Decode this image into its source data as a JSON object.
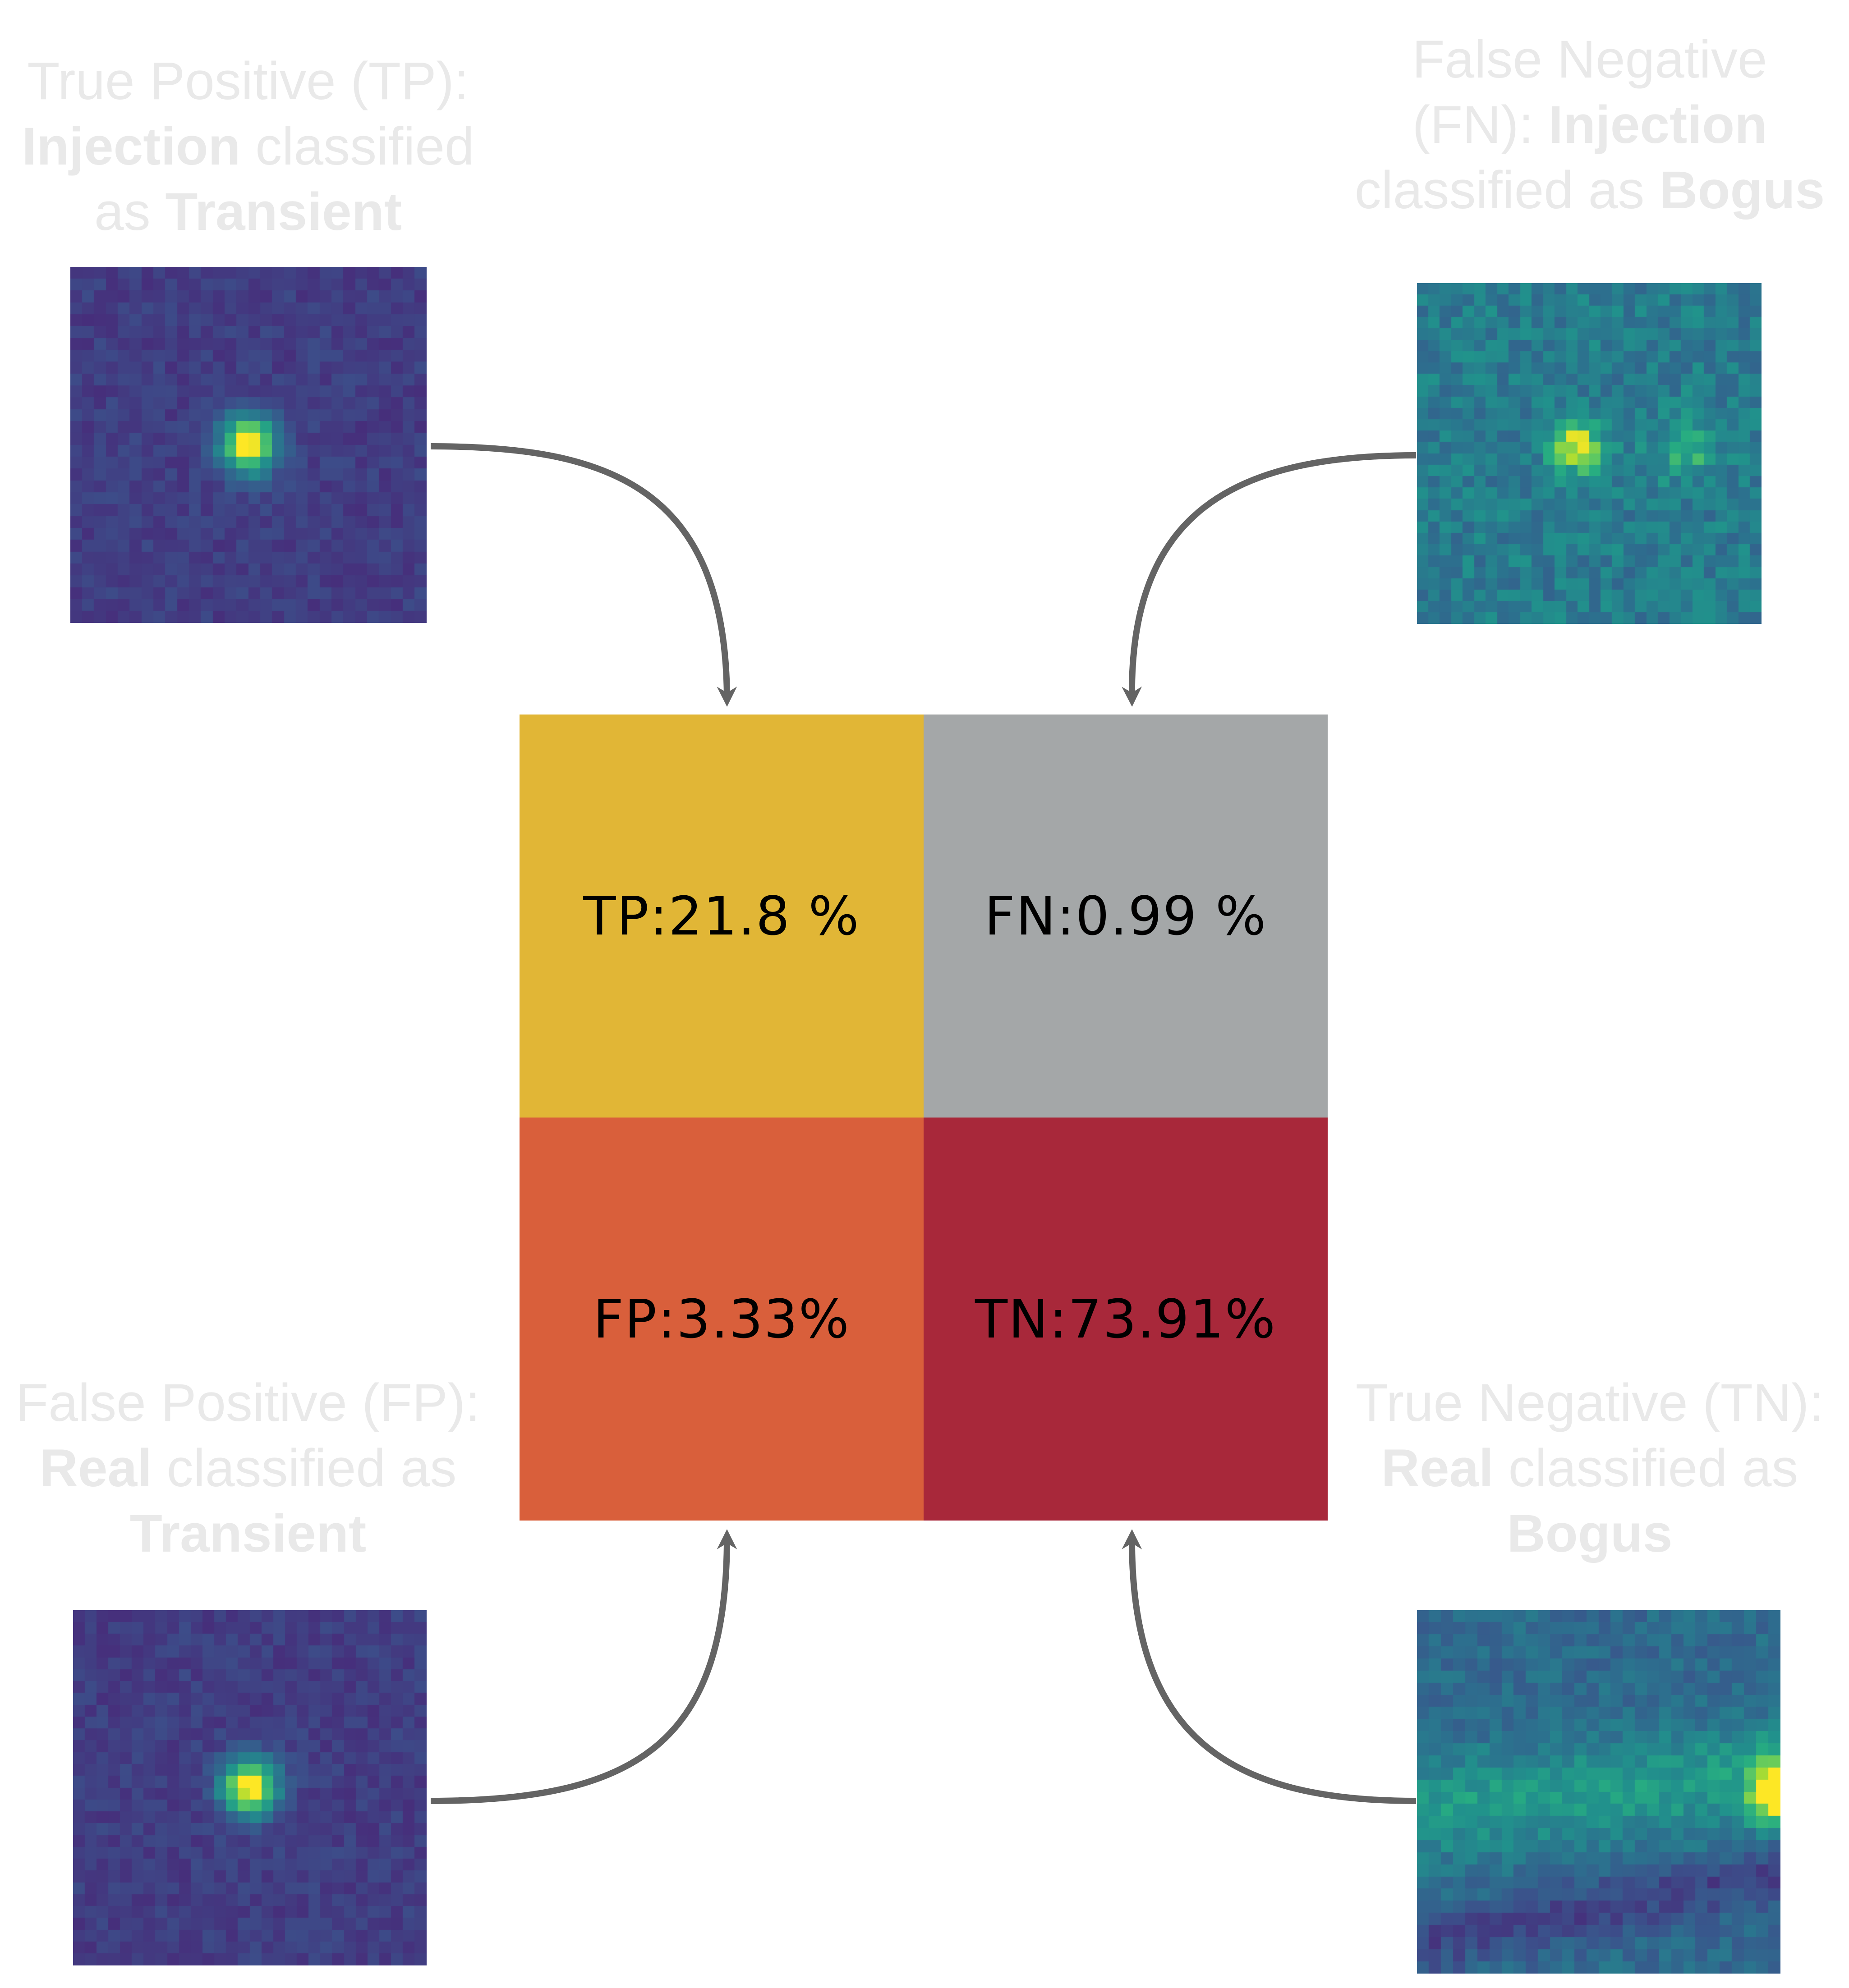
{
  "captions": {
    "tp": {
      "pre": "True Positive (TP):",
      "b1": "Injection",
      "mid": " classified",
      "pre2": "as ",
      "b2": "Transient"
    },
    "fn": {
      "pre": "False Negative",
      "pre2": "(FN): ",
      "b1": "Injection",
      "mid": "classified as ",
      "b2": "Bogus"
    },
    "fp": {
      "pre": "False Positive (FP):",
      "b1": "Real",
      "mid": " classified as",
      "b2": "Transient"
    },
    "tn": {
      "pre": "True Negative (TN):",
      "b1": "Real",
      "mid": " classified as",
      "b2": "Bogus"
    }
  },
  "matrix": {
    "tp_label": "TP:21.8 %",
    "fn_label": "FN:0.99 %",
    "fp_label": "FP:3.33%",
    "tn_label": "TN:73.91%",
    "colors": {
      "tp": "#e1b636",
      "fn": "#a4a7a8",
      "fp": "#d95f3b",
      "tn": "#a8283a"
    }
  },
  "arrow_color": "#646464",
  "thumbnails": {
    "tp": {
      "kind": "point-source",
      "palette": "viridis-dark"
    },
    "fn": {
      "kind": "double-source",
      "palette": "viridis-mid"
    },
    "fp": {
      "kind": "point-source",
      "palette": "viridis-dark"
    },
    "tn": {
      "kind": "extended-streak",
      "palette": "viridis-mid"
    }
  }
}
